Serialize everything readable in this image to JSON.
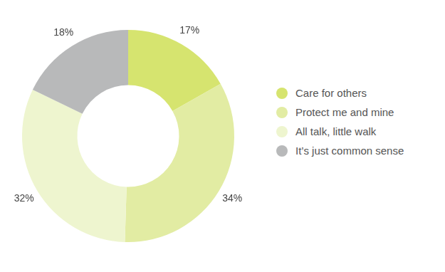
{
  "chart_data": {
    "type": "doughnut",
    "categories": [
      "Care for others",
      "Protect me and mine",
      "All talk, little walk",
      "It’s just common sense"
    ],
    "values": [
      17,
      34,
      32,
      18
    ],
    "value_labels": [
      "17%",
      "34%",
      "32%",
      "18%"
    ],
    "colors": [
      "#d6e46f",
      "#e2eca3",
      "#eef5cf",
      "#b8b9ba"
    ],
    "data_labels": true,
    "legend": "right"
  }
}
